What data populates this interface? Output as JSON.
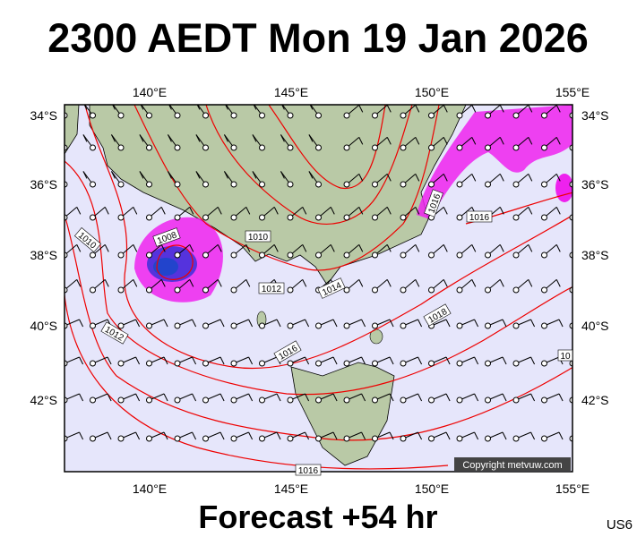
{
  "header": {
    "title": "2300 AEDT Mon 19 Jan 2026"
  },
  "map": {
    "lon_labels": [
      "140°E",
      "145°E",
      "150°E",
      "155°E"
    ],
    "lat_labels": [
      "34°S",
      "36°S",
      "38°S",
      "40°S",
      "42°S"
    ],
    "isobar_labels": [
      "1008",
      "1010",
      "1010",
      "1012",
      "1014",
      "1012",
      "1016",
      "1016",
      "1018",
      "1016",
      "10",
      "1016"
    ],
    "copyright": "Copyright metvuw.com"
  },
  "footer": {
    "forecast": "Forecast +54 hr",
    "code": "US6"
  }
}
